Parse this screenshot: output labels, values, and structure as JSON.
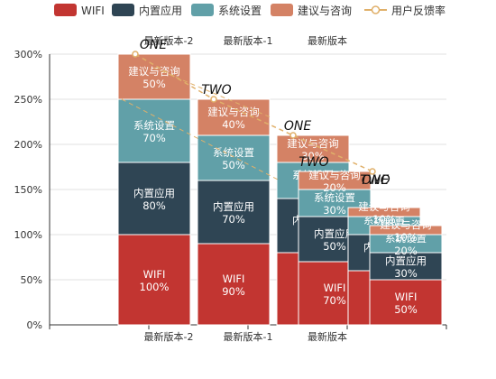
{
  "chart_data": {
    "type": "bar",
    "title": "",
    "legend": {
      "position": "top",
      "items": [
        {
          "name": "WIFI",
          "color": "#c23531",
          "marker": "rect"
        },
        {
          "name": "内置应用",
          "color": "#2f4554",
          "marker": "rect"
        },
        {
          "name": "系统设置",
          "color": "#61a0a8",
          "marker": "rect"
        },
        {
          "name": "建议与咨询",
          "color": "#d48265",
          "marker": "rect"
        },
        {
          "name": "用户反馈率",
          "color": "#e0b06a",
          "marker": "line-circle"
        }
      ]
    },
    "y_axis": {
      "min": 0,
      "max": 300,
      "unit": "%",
      "ticks": [
        "0%",
        "50%",
        "100%",
        "150%",
        "200%",
        "250%",
        "300%"
      ],
      "grid": true
    },
    "categories": [
      "最新版本-2",
      "最新版本-1",
      "最新版本"
    ],
    "stack_groups": [
      {
        "tag": "ONE",
        "segments": [
          {
            "series": "WIFI",
            "value": 100
          },
          {
            "series": "内置应用",
            "value": 80
          },
          {
            "series": "系统设置",
            "value": 70
          },
          {
            "series": "建议与咨询",
            "value": 50
          }
        ]
      },
      {
        "tag": "TWO",
        "segments": [
          {
            "series": "WIFI",
            "value": 90
          },
          {
            "series": "内置应用",
            "value": 70
          },
          {
            "series": "系统设置",
            "value": 50
          },
          {
            "series": "建议与咨询",
            "value": 40
          }
        ]
      },
      {
        "tag": "ONE",
        "segments": [
          {
            "series": "WIFI",
            "value": 80
          },
          {
            "series": "内置应用",
            "value": 60
          },
          {
            "series": "系统设置",
            "value": 40
          },
          {
            "series": "建议与咨询",
            "value": 30
          }
        ]
      },
      {
        "tag": "TWO",
        "segments": [
          {
            "series": "WIFI",
            "value": 70
          },
          {
            "series": "内置应用",
            "value": 50
          },
          {
            "series": "系统设置",
            "value": 30
          },
          {
            "series": "建议与咨询",
            "value": 20
          }
        ]
      },
      {
        "tag": "ONE",
        "segments": [
          {
            "series": "WIFI",
            "value": 60
          },
          {
            "series": "内置应用",
            "value": 40
          },
          {
            "series": "系统设置",
            "value": 20
          },
          {
            "series": "建议与咨询",
            "value": 10
          }
        ]
      },
      {
        "tag": "TWO",
        "segments": [
          {
            "series": "WIFI",
            "value": 50
          },
          {
            "series": "内置应用",
            "value": 30
          },
          {
            "series": "系统设置",
            "value": 20
          },
          {
            "series": "建议与咨询",
            "value": 10
          }
        ]
      }
    ],
    "line_series": {
      "name": "用户反馈率",
      "values": [
        300,
        250,
        210,
        170
      ]
    }
  }
}
